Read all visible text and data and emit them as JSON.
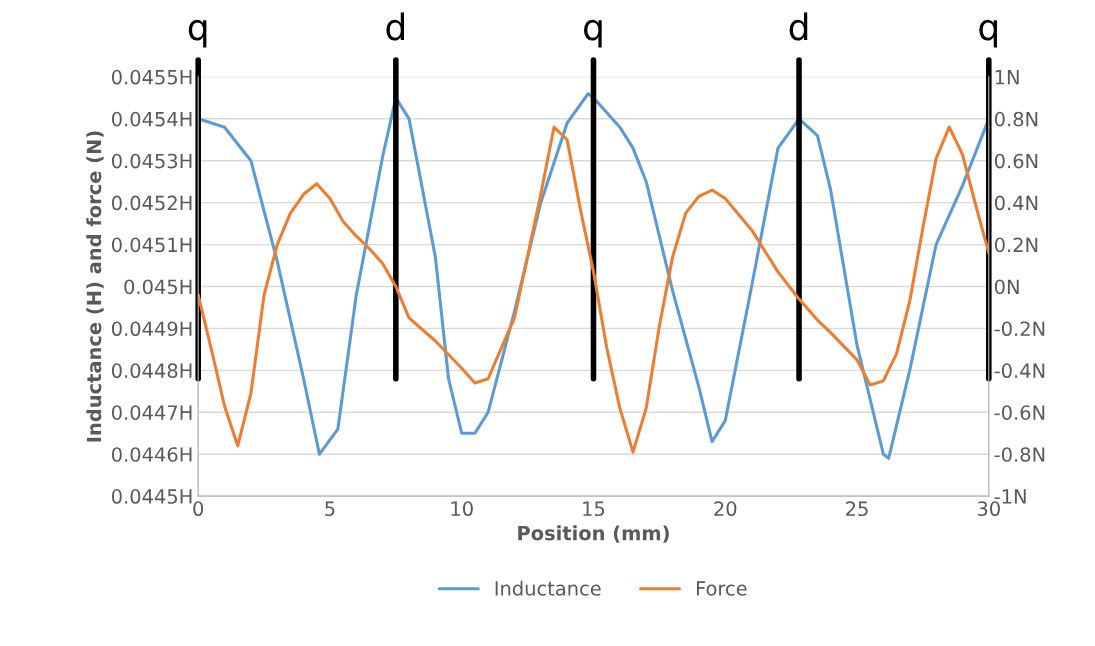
{
  "chart_data": {
    "type": "line",
    "xlabel": "Position (mm)",
    "ylabel": "Inductance (H) and force (N)",
    "xlim": [
      0,
      30
    ],
    "xticks": [
      0,
      5,
      10,
      15,
      20,
      25,
      30
    ],
    "ylim": [
      0.0445,
      0.0455
    ],
    "yticks": [
      {
        "value": 0.0445,
        "label": "0.0445H"
      },
      {
        "value": 0.0446,
        "label": "0.0446H"
      },
      {
        "value": 0.0447,
        "label": "0.0447H"
      },
      {
        "value": 0.0448,
        "label": "0.0448H"
      },
      {
        "value": 0.0449,
        "label": "0.0449H"
      },
      {
        "value": 0.045,
        "label": "0.045H"
      },
      {
        "value": 0.0451,
        "label": "0.0451H"
      },
      {
        "value": 0.0452,
        "label": "0.0452H"
      },
      {
        "value": 0.0453,
        "label": "0.0453H"
      },
      {
        "value": 0.0454,
        "label": "0.0454H"
      },
      {
        "value": 0.0455,
        "label": "0.0455H"
      }
    ],
    "y2lim": [
      -1,
      1
    ],
    "y2ticks": [
      {
        "value": -1,
        "label": "-1N"
      },
      {
        "value": -0.8,
        "label": "-0.8N"
      },
      {
        "value": -0.6,
        "label": "-0.6N"
      },
      {
        "value": -0.4,
        "label": "-0.4N"
      },
      {
        "value": -0.2,
        "label": "-0.2N"
      },
      {
        "value": 0,
        "label": "0N"
      },
      {
        "value": 0.2,
        "label": "0.2N"
      },
      {
        "value": 0.4,
        "label": "0.4N"
      },
      {
        "value": 0.6,
        "label": "0.6N"
      },
      {
        "value": 0.8,
        "label": "0.8N"
      },
      {
        "value": 1,
        "label": "1N"
      }
    ],
    "grid": "y",
    "legend": "bottom",
    "marker": "none",
    "line_style": "solid",
    "series": [
      {
        "name": "Inductance",
        "color": "#5b9bd5",
        "x": [
          0,
          1,
          2,
          3,
          4,
          4.6,
          5.3,
          6,
          7,
          7.5,
          8,
          9,
          9.5,
          10,
          10.5,
          11,
          12,
          13,
          14,
          14.8,
          15,
          16,
          16.5,
          17,
          18,
          19,
          19.5,
          20,
          21,
          22,
          22.8,
          23.5,
          24,
          25,
          26,
          26.2,
          27,
          28,
          29,
          30
        ],
        "values": [
          0.0454,
          0.04538,
          0.0453,
          0.04506,
          0.04478,
          0.0446,
          0.04466,
          0.04498,
          0.04531,
          0.04545,
          0.0454,
          0.04507,
          0.04478,
          0.04465,
          0.04465,
          0.0447,
          0.04494,
          0.0452,
          0.04539,
          0.04546,
          0.04545,
          0.04538,
          0.04533,
          0.04525,
          0.04499,
          0.04476,
          0.04463,
          0.04468,
          0.045,
          0.04533,
          0.0454,
          0.04536,
          0.04523,
          0.04486,
          0.0446,
          0.04459,
          0.0448,
          0.0451,
          0.04524,
          0.0454
        ]
      },
      {
        "name": "Force",
        "color": "#ed7d31",
        "axis": "y2",
        "x": [
          0,
          0.5,
          1,
          1.5,
          2,
          2.5,
          3,
          3.5,
          4,
          4.5,
          5,
          5.5,
          6,
          6.5,
          7,
          7.5,
          8,
          9,
          10,
          10.5,
          11,
          12,
          13,
          13.5,
          14,
          14.5,
          15,
          15.5,
          16,
          16.5,
          17,
          17.5,
          18,
          18.5,
          19,
          19.5,
          20,
          21,
          22,
          22.8,
          23.5,
          24,
          25,
          25.5,
          26,
          26.5,
          27,
          27.5,
          28,
          28.5,
          29,
          29.5,
          30
        ],
        "values": [
          -0.04,
          -0.3,
          -0.57,
          -0.76,
          -0.51,
          -0.04,
          0.2,
          0.35,
          0.44,
          0.49,
          0.42,
          0.31,
          0.24,
          0.18,
          0.11,
          0,
          -0.15,
          -0.26,
          -0.39,
          -0.46,
          -0.44,
          -0.15,
          0.44,
          0.76,
          0.7,
          0.37,
          0.07,
          -0.29,
          -0.58,
          -0.79,
          -0.58,
          -0.19,
          0.14,
          0.35,
          0.43,
          0.46,
          0.42,
          0.27,
          0.07,
          -0.06,
          -0.16,
          -0.22,
          -0.35,
          -0.47,
          -0.45,
          -0.32,
          -0.07,
          0.28,
          0.61,
          0.76,
          0.63,
          0.39,
          0.16
        ]
      }
    ],
    "ref_lines": [
      {
        "axis": "x",
        "value": 0,
        "label": "q",
        "color": "#000000"
      },
      {
        "axis": "x",
        "value": 7.5,
        "label": "d",
        "color": "#000000"
      },
      {
        "axis": "x",
        "value": 15,
        "label": "q",
        "color": "#000000"
      },
      {
        "axis": "x",
        "value": 22.8,
        "label": "d",
        "color": "#000000"
      },
      {
        "axis": "x",
        "value": 30,
        "label": "q",
        "color": "#000000"
      }
    ]
  }
}
